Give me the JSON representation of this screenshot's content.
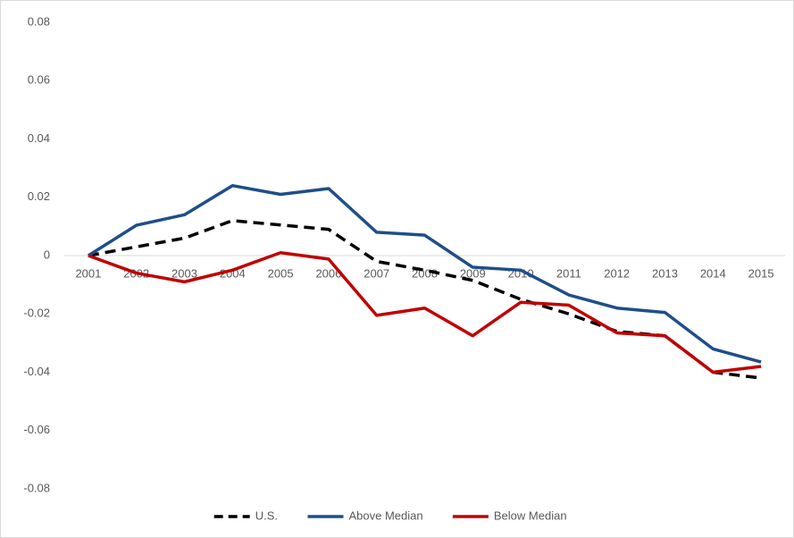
{
  "chart_data": {
    "type": "line",
    "categories": [
      "2001",
      "2002",
      "2003",
      "2004",
      "2005",
      "2006",
      "2007",
      "2008",
      "2009",
      "2010",
      "2011",
      "2012",
      "2013",
      "2014",
      "2015"
    ],
    "series": [
      {
        "name": "U.S.",
        "color": "#000000",
        "dashed": true,
        "values": [
          0,
          0.003,
          0.006,
          0.012,
          0.0105,
          0.009,
          -0.002,
          -0.005,
          -0.0085,
          -0.015,
          -0.02,
          -0.026,
          -0.0275,
          -0.04,
          -0.042
        ]
      },
      {
        "name": "Above Median",
        "color": "#1f4e89",
        "dashed": false,
        "values": [
          0,
          0.0104,
          0.014,
          0.024,
          0.021,
          0.023,
          0.008,
          0.007,
          -0.004,
          -0.005,
          -0.0135,
          -0.018,
          -0.0195,
          -0.032,
          -0.0365
        ]
      },
      {
        "name": "Below Median",
        "color": "#c00000",
        "dashed": false,
        "values": [
          0,
          -0.006,
          -0.009,
          -0.005,
          0.001,
          -0.0012,
          -0.0205,
          -0.018,
          -0.0275,
          -0.016,
          -0.017,
          -0.0265,
          -0.0275,
          -0.04,
          -0.038
        ]
      }
    ],
    "ylim": [
      -0.08,
      0.08
    ],
    "yticks": [
      -0.08,
      -0.06,
      -0.04,
      -0.02,
      0,
      0.02,
      0.04,
      0.06,
      0.08
    ],
    "grid": false,
    "legend": "bottom"
  }
}
